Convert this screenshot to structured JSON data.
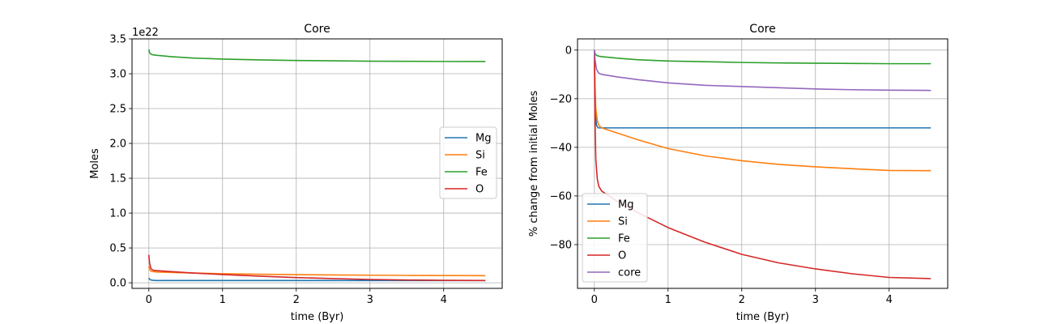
{
  "chart_data": [
    {
      "type": "line",
      "title": "Core",
      "xlabel": "time (Byr)",
      "ylabel": "Moles",
      "offset_label": "1e22",
      "xlim": [
        -0.2283,
        4.7943
      ],
      "ylim": [
        -0.08,
        3.5
      ],
      "xticks": [
        0,
        1,
        2,
        3,
        4
      ],
      "yticks": [
        0.0,
        0.5,
        1.0,
        1.5,
        2.0,
        2.5,
        3.0,
        3.5
      ],
      "ytick_labels": [
        "0.0",
        "0.5",
        "1.0",
        "1.5",
        "2.0",
        "2.5",
        "3.0",
        "3.5"
      ],
      "grid": true,
      "legend": "center right",
      "series": [
        {
          "name": "Mg",
          "color": "#1f77b4",
          "x": [
            0,
            0.01,
            0.03,
            0.06,
            0.1,
            0.3,
            1,
            2,
            3,
            4,
            4.566
          ],
          "y": [
            0.07,
            0.05,
            0.04,
            0.035,
            0.033,
            0.033,
            0.033,
            0.033,
            0.033,
            0.033,
            0.033
          ]
        },
        {
          "name": "Si",
          "color": "#ff7f0e",
          "x": [
            0,
            0.01,
            0.03,
            0.06,
            0.1,
            0.3,
            0.6,
            1,
            1.5,
            2,
            2.5,
            3,
            3.5,
            4,
            4.566
          ],
          "y": [
            0.24,
            0.19,
            0.165,
            0.16,
            0.155,
            0.148,
            0.14,
            0.13,
            0.123,
            0.117,
            0.112,
            0.109,
            0.106,
            0.104,
            0.102
          ]
        },
        {
          "name": "Fe",
          "color": "#2ca02c",
          "x": [
            0,
            0.01,
            0.03,
            0.06,
            0.1,
            0.3,
            0.6,
            1,
            1.5,
            2,
            2.5,
            3,
            3.5,
            4,
            4.566
          ],
          "y": [
            3.35,
            3.3,
            3.28,
            3.27,
            3.265,
            3.245,
            3.225,
            3.21,
            3.198,
            3.19,
            3.185,
            3.18,
            3.178,
            3.176,
            3.175
          ]
        },
        {
          "name": "O",
          "color": "#d62728",
          "x": [
            0,
            0.01,
            0.03,
            0.06,
            0.1,
            0.3,
            0.6,
            1,
            1.5,
            2,
            2.5,
            3,
            3.5,
            4,
            4.566
          ],
          "y": [
            0.4,
            0.28,
            0.2,
            0.18,
            0.175,
            0.16,
            0.14,
            0.118,
            0.095,
            0.075,
            0.06,
            0.048,
            0.04,
            0.035,
            0.033
          ]
        }
      ]
    },
    {
      "type": "line",
      "title": "Core",
      "xlabel": "time (Byr)",
      "ylabel": "% change from initial Moles",
      "xlim": [
        -0.2283,
        4.7943
      ],
      "ylim": [
        -98.0,
        4.6
      ],
      "xticks": [
        0,
        1,
        2,
        3,
        4
      ],
      "yticks": [
        0,
        -20,
        -40,
        -60,
        -80
      ],
      "ytick_labels": [
        "0",
        "−20",
        "−40",
        "−60",
        "−80"
      ],
      "grid": true,
      "legend": "lower left",
      "series": [
        {
          "name": "Mg",
          "color": "#1f77b4",
          "x": [
            0,
            0.005,
            0.01,
            0.02,
            0.03,
            0.05,
            0.1,
            1,
            2,
            3,
            4,
            4.566
          ],
          "y": [
            0,
            -10,
            -20,
            -28,
            -31,
            -32,
            -32,
            -32,
            -32,
            -32,
            -32,
            -32
          ]
        },
        {
          "name": "Si",
          "color": "#ff7f0e",
          "x": [
            0,
            0.005,
            0.01,
            0.02,
            0.04,
            0.06,
            0.1,
            0.3,
            0.6,
            1,
            1.5,
            2,
            2.5,
            3,
            3.5,
            4,
            4.566
          ],
          "y": [
            0,
            -8,
            -15,
            -24,
            -29,
            -31,
            -32,
            -34,
            -37,
            -40.5,
            -43.5,
            -45.5,
            -47,
            -48,
            -48.8,
            -49.5,
            -49.6
          ]
        },
        {
          "name": "Fe",
          "color": "#2ca02c",
          "x": [
            0,
            0.01,
            0.03,
            0.06,
            0.1,
            0.3,
            0.6,
            1,
            1.5,
            2,
            2.5,
            3,
            3.5,
            4,
            4.566
          ],
          "y": [
            0,
            -1.5,
            -2.2,
            -2.5,
            -2.7,
            -3.3,
            -4,
            -4.5,
            -4.8,
            -5.1,
            -5.3,
            -5.4,
            -5.5,
            -5.6,
            -5.6
          ]
        },
        {
          "name": "O",
          "color": "#d62728",
          "x": [
            0,
            0.005,
            0.01,
            0.02,
            0.04,
            0.06,
            0.1,
            0.3,
            0.6,
            1,
            1.5,
            2,
            2.5,
            3,
            3.5,
            4,
            4.566
          ],
          "y": [
            0,
            -15,
            -30,
            -45,
            -53,
            -56,
            -58,
            -62,
            -67,
            -73,
            -79,
            -84,
            -87.5,
            -90,
            -92,
            -93.5,
            -94
          ]
        },
        {
          "name": "core",
          "color": "#9467bd",
          "x": [
            0,
            0.01,
            0.03,
            0.06,
            0.1,
            0.3,
            0.6,
            1,
            1.5,
            2,
            2.5,
            3,
            3.5,
            4,
            4.566
          ],
          "y": [
            0,
            -4,
            -8,
            -9.5,
            -10,
            -11,
            -12.2,
            -13.5,
            -14.5,
            -15,
            -15.5,
            -16,
            -16.3,
            -16.5,
            -16.6
          ]
        }
      ]
    }
  ]
}
